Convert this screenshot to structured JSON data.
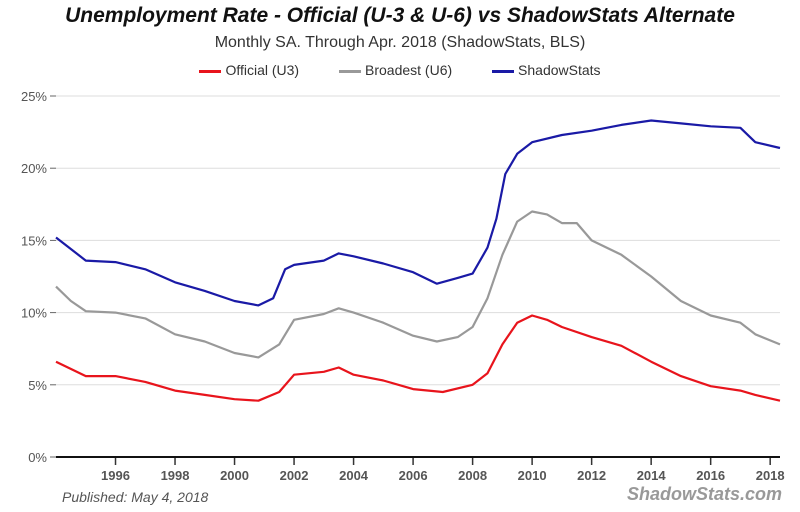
{
  "chart_data": {
    "type": "line",
    "title": "Unemployment Rate - Official (U-3 & U-6) vs ShadowStats Alternate",
    "subtitle": "Monthly SA. Through Apr. 2018  (ShadowStats, BLS)",
    "xlabel": "",
    "ylabel": "",
    "xlim": [
      1994.0,
      2018.33
    ],
    "ylim": [
      0,
      25
    ],
    "grid": true,
    "legend_placement": "top-center",
    "x_ticks": [
      "1996",
      "1998",
      "2000",
      "2002",
      "2004",
      "2006",
      "2008",
      "2010",
      "2012",
      "2014",
      "2016",
      "2018"
    ],
    "y_ticks": [
      "0%",
      "5%",
      "10%",
      "15%",
      "20%",
      "25%"
    ],
    "series": [
      {
        "name": "Official (U3)",
        "color": "#e8141c",
        "x": [
          1994,
          1995,
          1996,
          1997,
          1998,
          1999,
          2000,
          2000.8,
          2001.5,
          2002,
          2003,
          2003.5,
          2004,
          2005,
          2006,
          2007,
          2008,
          2008.5,
          2009,
          2009.5,
          2010,
          2010.5,
          2011,
          2012,
          2013,
          2014,
          2015,
          2016,
          2017,
          2017.5,
          2018.33
        ],
        "y": [
          6.6,
          5.6,
          5.6,
          5.2,
          4.6,
          4.3,
          4.0,
          3.9,
          4.5,
          5.7,
          5.9,
          6.2,
          5.7,
          5.3,
          4.7,
          4.5,
          5.0,
          5.8,
          7.8,
          9.3,
          9.8,
          9.5,
          9.0,
          8.3,
          7.7,
          6.6,
          5.6,
          4.9,
          4.6,
          4.3,
          3.9
        ]
      },
      {
        "name": "Broadest (U6)",
        "color": "#999999",
        "x": [
          1994,
          1994.5,
          1995,
          1996,
          1997,
          1998,
          1999,
          2000,
          2000.8,
          2001.5,
          2002,
          2003,
          2003.5,
          2004,
          2005,
          2006,
          2006.8,
          2007.5,
          2008,
          2008.5,
          2009,
          2009.5,
          2010,
          2010.5,
          2011,
          2011.5,
          2012,
          2013,
          2014,
          2015,
          2016,
          2017,
          2017.5,
          2018.33
        ],
        "y": [
          11.8,
          10.8,
          10.1,
          10.0,
          9.6,
          8.5,
          8.0,
          7.2,
          6.9,
          7.8,
          9.5,
          9.9,
          10.3,
          10.0,
          9.3,
          8.4,
          8.0,
          8.3,
          9.0,
          11.0,
          14.0,
          16.3,
          17.0,
          16.8,
          16.2,
          16.2,
          15.0,
          14.0,
          12.5,
          10.8,
          9.8,
          9.3,
          8.5,
          7.8
        ]
      },
      {
        "name": "ShadowStats",
        "color": "#1a1aa6",
        "x": [
          1994,
          1995,
          1996,
          1997,
          1998,
          1999,
          2000,
          2000.8,
          2001.3,
          2001.7,
          2002,
          2003,
          2003.5,
          2004,
          2005,
          2006,
          2006.8,
          2007.5,
          2008,
          2008.5,
          2008.8,
          2009.1,
          2009.5,
          2010,
          2011,
          2012,
          2013,
          2014,
          2015,
          2016,
          2017,
          2017.5,
          2018.33
        ],
        "y": [
          15.2,
          13.6,
          13.5,
          13.0,
          12.1,
          11.5,
          10.8,
          10.5,
          11.0,
          13.0,
          13.3,
          13.6,
          14.1,
          13.9,
          13.4,
          12.8,
          12.0,
          12.4,
          12.7,
          14.5,
          16.5,
          19.6,
          21.0,
          21.8,
          22.3,
          22.6,
          23.0,
          23.3,
          23.1,
          22.9,
          22.8,
          21.8,
          21.4
        ]
      }
    ]
  },
  "footer": {
    "published": "Published: May 4, 2018",
    "brand": "ShadowStats.com"
  }
}
